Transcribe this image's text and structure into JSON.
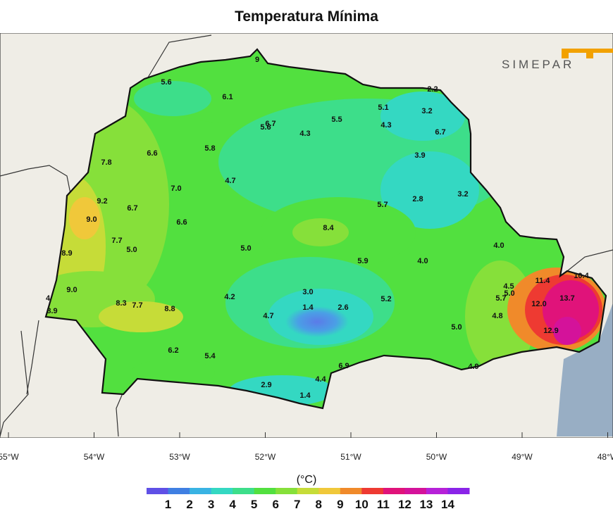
{
  "title": "Temperatura Mínima",
  "units": "(°C)",
  "logo_text": "SIMEPAR",
  "colors": {
    "ocean": "#98aec4",
    "land_outside": "#efede6",
    "logo_accent": "#f2a100"
  },
  "longitude_ticks": [
    "55°W",
    "54°W",
    "53°W",
    "52°W",
    "51°W",
    "50°W",
    "49°W",
    "48°W"
  ],
  "legend": {
    "labels": [
      "1",
      "2",
      "3",
      "4",
      "5",
      "6",
      "7",
      "8",
      "9",
      "10",
      "11",
      "12",
      "13",
      "14"
    ],
    "colors": [
      "#5f50e6",
      "#3f7fe2",
      "#39b3e3",
      "#34d8c2",
      "#3dde8a",
      "#52e03f",
      "#86e03a",
      "#c6dc38",
      "#f0c83a",
      "#f08a2a",
      "#ee3a32",
      "#e0137a",
      "#d4129a",
      "#b621d8",
      "#8a24e8"
    ]
  },
  "stations": [
    {
      "v": "9"
    },
    {
      "v": "5.6"
    },
    {
      "v": "6.1"
    },
    {
      "v": "2.2"
    },
    {
      "v": "5.1"
    },
    {
      "v": "3.2"
    },
    {
      "v": "6.7"
    },
    {
      "v": "5.6"
    },
    {
      "v": "4.3"
    },
    {
      "v": "5.5"
    },
    {
      "v": "4.3"
    },
    {
      "v": "6.7"
    },
    {
      "v": "6.6"
    },
    {
      "v": "5.8"
    },
    {
      "v": "7.8"
    },
    {
      "v": "3.9"
    },
    {
      "v": "4.7"
    },
    {
      "v": "7.0"
    },
    {
      "v": "9.2"
    },
    {
      "v": "6.7"
    },
    {
      "v": "5.7"
    },
    {
      "v": "2.8"
    },
    {
      "v": "3.2"
    },
    {
      "v": "9.0"
    },
    {
      "v": "6.6"
    },
    {
      "v": "8.4"
    },
    {
      "v": "7.7"
    },
    {
      "v": "5.0"
    },
    {
      "v": "5.0"
    },
    {
      "v": "8.9"
    },
    {
      "v": "4.0"
    },
    {
      "v": "5.9"
    },
    {
      "v": "4.0"
    },
    {
      "v": "10.4"
    },
    {
      "v": "11.4"
    },
    {
      "v": "9.0"
    },
    {
      "v": "3.0"
    },
    {
      "v": "4.2"
    },
    {
      "v": "4.5"
    },
    {
      "v": "5.0"
    },
    {
      "v": "5.7"
    },
    {
      "v": "5.2"
    },
    {
      "v": "8.3"
    },
    {
      "v": "7.7"
    },
    {
      "v": "8.8"
    },
    {
      "v": "1.4"
    },
    {
      "v": "2.6"
    },
    {
      "v": "12.0"
    },
    {
      "v": "13.7"
    },
    {
      "v": "8.9"
    },
    {
      "v": "4.7"
    },
    {
      "v": "4.8"
    },
    {
      "v": "5.0"
    },
    {
      "v": "12.9"
    },
    {
      "v": "6.2"
    },
    {
      "v": "5.4"
    },
    {
      "v": "6.9"
    },
    {
      "v": "4.9"
    },
    {
      "v": "4.4"
    },
    {
      "v": "2.9"
    },
    {
      "v": "1.4"
    },
    {
      "v": "4"
    }
  ]
}
